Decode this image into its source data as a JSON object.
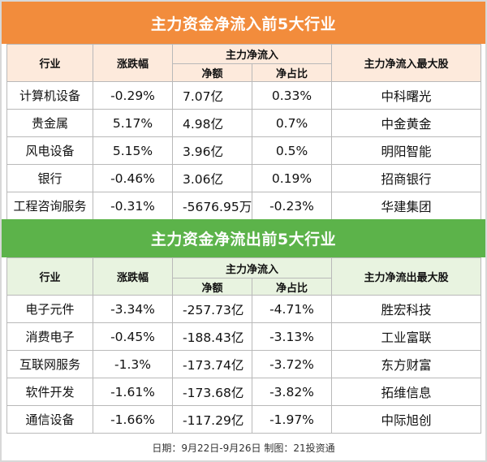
{
  "inflow": {
    "title": "主力资金净流入前5大行业",
    "headers": {
      "industry": "行业",
      "change": "涨跌幅",
      "net_group": "主力净流入",
      "net_amount": "净额",
      "net_ratio": "净占比",
      "top_stock": "主力净流入最大股"
    },
    "rows": [
      {
        "industry": "计算机设备",
        "change": "-0.29%",
        "amount": "7.07亿",
        "ratio": "0.33%",
        "stock": "中科曙光"
      },
      {
        "industry": "贵金属",
        "change": "5.17%",
        "amount": "4.98亿",
        "ratio": "0.7%",
        "stock": "中金黄金"
      },
      {
        "industry": "风电设备",
        "change": "5.15%",
        "amount": "3.96亿",
        "ratio": "0.5%",
        "stock": "明阳智能"
      },
      {
        "industry": "银行",
        "change": "-0.46%",
        "amount": "3.06亿",
        "ratio": "0.19%",
        "stock": "招商银行"
      },
      {
        "industry": "工程咨询服务",
        "change": "-0.31%",
        "amount": "-5676.95万",
        "ratio": "-0.23%",
        "stock": "华建集团"
      }
    ]
  },
  "outflow": {
    "title": "主力资金净流出前5大行业",
    "headers": {
      "industry": "行业",
      "change": "涨跌幅",
      "net_group": "主力净流入",
      "net_amount": "净额",
      "net_ratio": "净占比",
      "top_stock": "主力净流出最大股"
    },
    "rows": [
      {
        "industry": "电子元件",
        "change": "-3.34%",
        "amount": "-257.73亿",
        "ratio": "-4.71%",
        "stock": "胜宏科技"
      },
      {
        "industry": "消费电子",
        "change": "-0.45%",
        "amount": "-188.43亿",
        "ratio": "-3.13%",
        "stock": "工业富联"
      },
      {
        "industry": "互联网服务",
        "change": "-1.3%",
        "amount": "-173.74亿",
        "ratio": "-3.72%",
        "stock": "东方财富"
      },
      {
        "industry": "软件开发",
        "change": "-1.61%",
        "amount": "-173.68亿",
        "ratio": "-3.82%",
        "stock": "拓维信息"
      },
      {
        "industry": "通信设备",
        "change": "-1.66%",
        "amount": "-117.29亿",
        "ratio": "-1.97%",
        "stock": "中际旭创"
      }
    ]
  },
  "footer": "日期：9月22日-9月26日 制图：21投资通",
  "colors": {
    "inflow_banner": "#f28c3c",
    "inflow_header": "#fdeadc",
    "outflow_banner": "#5cb34a",
    "outflow_header": "#e8f3e0"
  }
}
